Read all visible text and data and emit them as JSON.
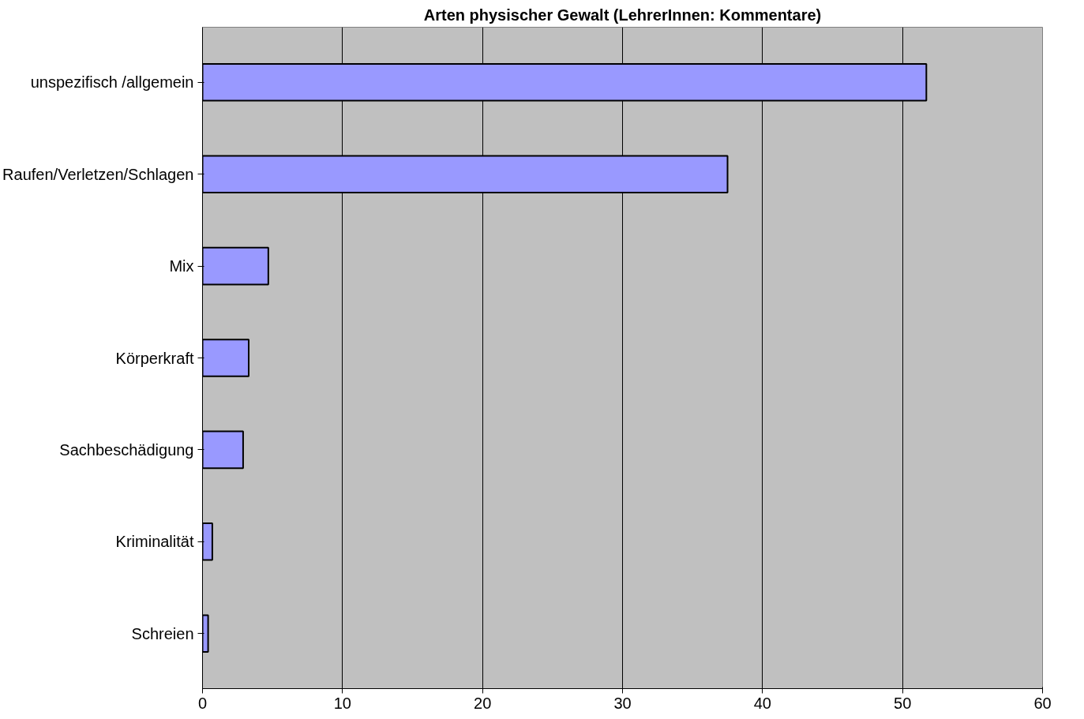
{
  "chart_data": {
    "type": "bar",
    "orientation": "horizontal",
    "title": "Arten physischer Gewalt (LehrerInnen: Kommentare)",
    "categories": [
      "unspezifisch /allgemein",
      "Raufen/Verletzen/Schlagen",
      "Mix",
      "Körperkraft",
      "Sachbeschädigung",
      "Kriminalität",
      "Schreien"
    ],
    "values": [
      51.7,
      37.5,
      4.7,
      3.3,
      2.9,
      0.7,
      0.4
    ],
    "color": "#9999ff",
    "xlim": [
      0,
      60
    ],
    "xticks": [
      0,
      10,
      20,
      30,
      40,
      50,
      60
    ],
    "grid": "x"
  }
}
